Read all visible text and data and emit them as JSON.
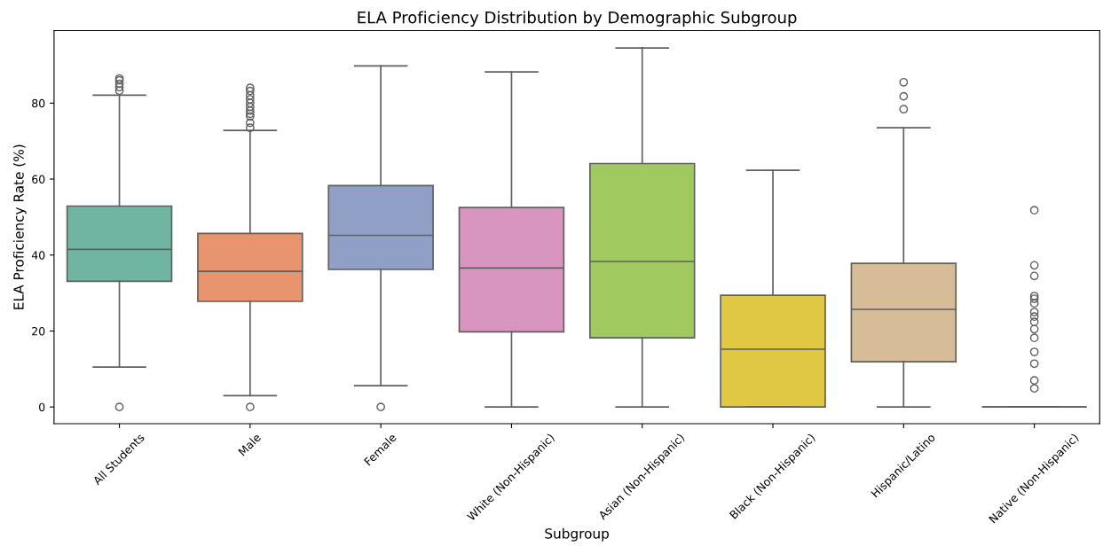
{
  "chart_data": {
    "type": "box",
    "title": "ELA Proficiency Distribution by Demographic Subgroup",
    "xlabel": "Subgroup",
    "ylabel": "ELA Proficiency Rate (%)",
    "categories": [
      "All Students",
      "Male",
      "Female",
      "White (Non-Hispanic)",
      "Asian (Non-Hispanic)",
      "Black (Non-Hispanic)",
      "Hispanic/Latino",
      "Native (Non-Hispanic)"
    ],
    "colors": [
      "#6fb5a1",
      "#e8956f",
      "#909fc5",
      "#d795bf",
      "#a0ca5f",
      "#e1c844",
      "#d6bd97",
      null
    ],
    "boxes": [
      {
        "low": 10.5,
        "q1": 33.1,
        "median": 41.5,
        "q3": 52.9,
        "high": 82.1,
        "outliers": [
          0,
          83.3,
          84.2,
          85.1,
          86.0,
          86.5
        ]
      },
      {
        "low": 3.0,
        "q1": 27.8,
        "median": 35.7,
        "q3": 45.7,
        "high": 72.8,
        "outliers": [
          0,
          73.5,
          74.8,
          76.5,
          77.2,
          78.0,
          79.0,
          80.0,
          81.0,
          82.0,
          83.2,
          84.0
        ]
      },
      {
        "low": 5.6,
        "q1": 36.2,
        "median": 45.2,
        "q3": 58.3,
        "high": 89.8,
        "outliers": [
          0
        ]
      },
      {
        "low": 0,
        "q1": 19.8,
        "median": 36.6,
        "q3": 52.5,
        "high": 88.2
      },
      {
        "low": 0,
        "q1": 18.2,
        "median": 38.3,
        "q3": 64.1,
        "high": 94.5
      },
      {
        "low": 0,
        "q1": 0,
        "median": 15.2,
        "q3": 29.4,
        "high": 62.3
      },
      {
        "low": 0,
        "q1": 11.9,
        "median": 25.7,
        "q3": 37.8,
        "high": 73.5,
        "outliers": [
          78.4,
          81.8,
          85.5
        ]
      },
      {
        "low": 0,
        "q1": 0,
        "median": 0,
        "q3": 0,
        "high": 0,
        "outliers": [
          4.9,
          7.0,
          11.4,
          14.5,
          18.2,
          20.5,
          22.4,
          23.8,
          25.0,
          27.3,
          28.5,
          29.2,
          34.5,
          37.3,
          51.8
        ]
      }
    ],
    "ylim": [
      -4.4,
      99.1
    ],
    "yticks": [
      0,
      20,
      40,
      60,
      80
    ],
    "grid": false
  }
}
